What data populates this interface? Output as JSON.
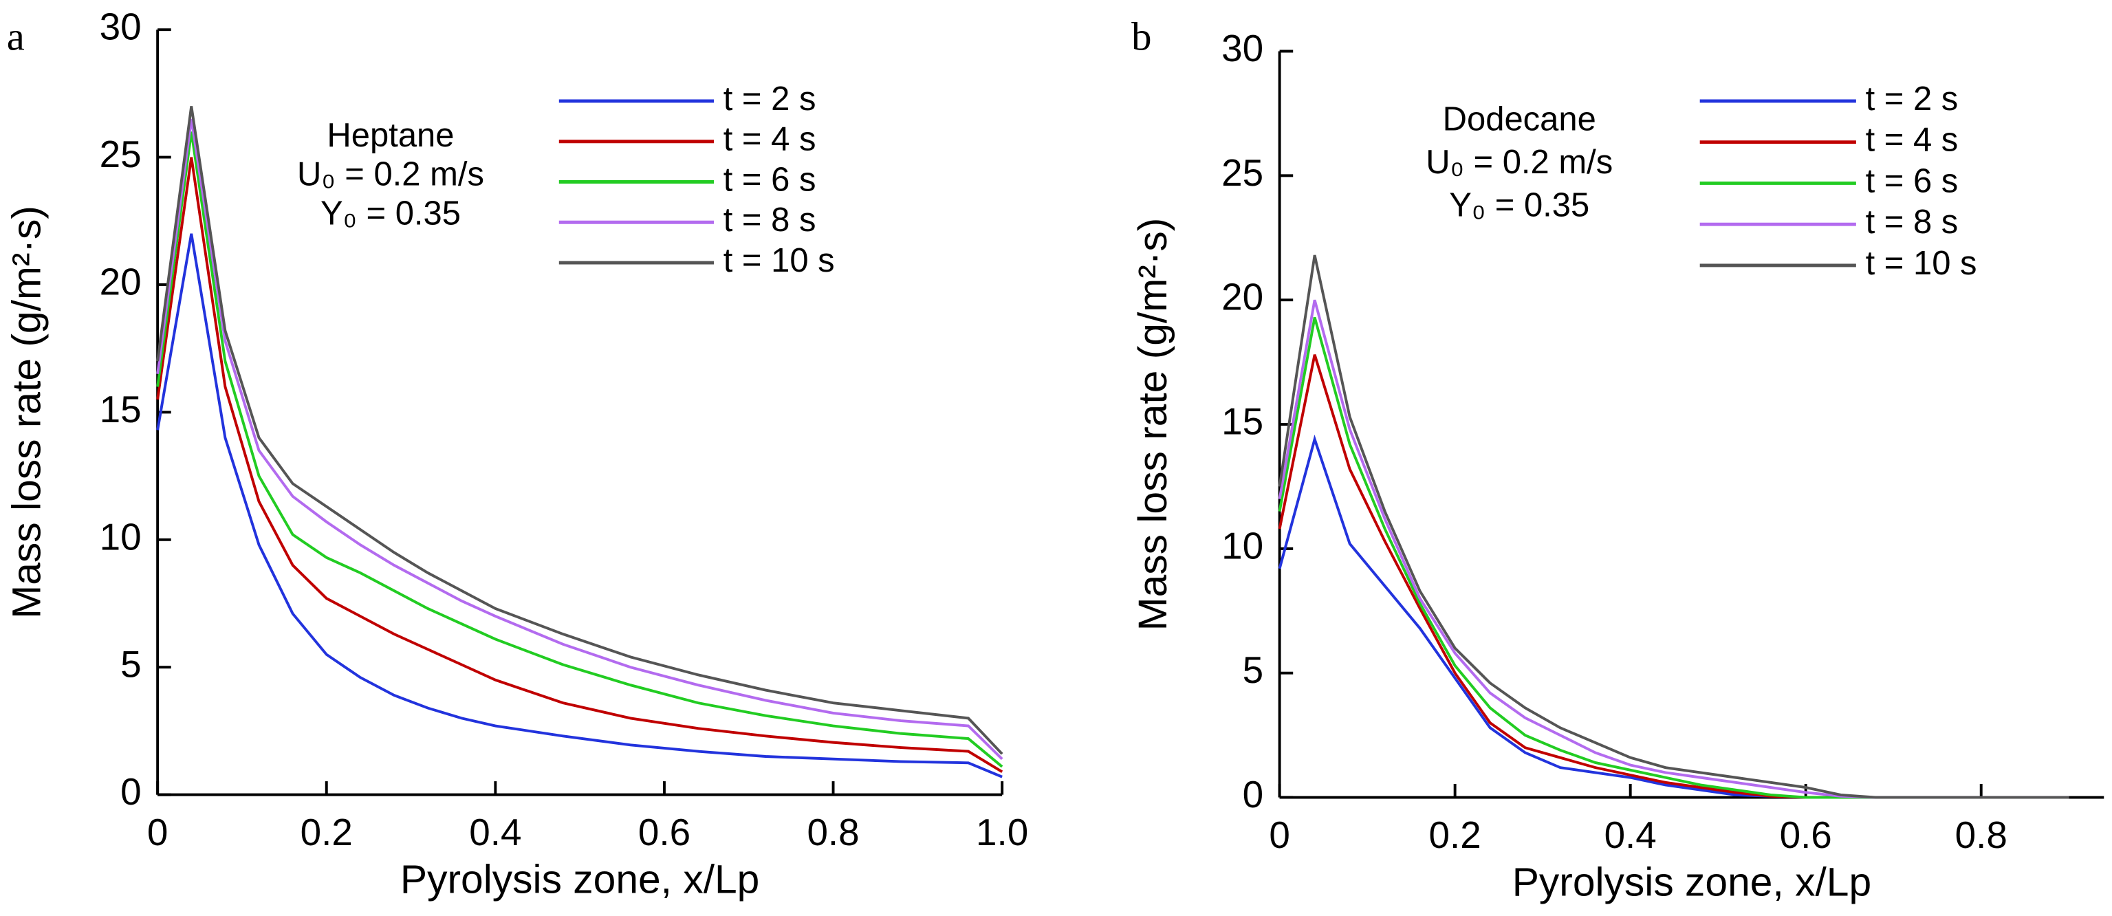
{
  "chart_data": [
    {
      "type": "line",
      "panel_label": "a",
      "xlabel": "Pyrolysis zone, x/Lp",
      "ylabel": "Mass loss rate (g/m²·s)",
      "annotation": [
        "Heptane",
        "U₀ = 0.2 m/s",
        "Y₀ = 0.35"
      ],
      "x": [
        0,
        0.04,
        0.08,
        0.12,
        0.16,
        0.2,
        0.24,
        0.28,
        0.32,
        0.36,
        0.4,
        0.48,
        0.56,
        0.64,
        0.72,
        0.8,
        0.88,
        0.96,
        1.0
      ],
      "series": [
        {
          "name": "t = 2 s",
          "color": "#2233dd",
          "values": [
            14.3,
            22,
            14,
            9.8,
            7.1,
            5.5,
            4.6,
            3.9,
            3.4,
            3.0,
            2.7,
            2.3,
            1.95,
            1.7,
            1.5,
            1.4,
            1.3,
            1.25,
            0.7
          ]
        },
        {
          "name": "t = 4 s",
          "color": "#c00000",
          "values": [
            15.5,
            25,
            16,
            11.5,
            9.0,
            7.7,
            7.0,
            6.3,
            5.7,
            5.1,
            4.5,
            3.6,
            3.0,
            2.6,
            2.3,
            2.05,
            1.85,
            1.7,
            0.9
          ]
        },
        {
          "name": "t = 6 s",
          "color": "#22cc22",
          "values": [
            16,
            26,
            17,
            12.5,
            10.2,
            9.3,
            8.7,
            8.0,
            7.3,
            6.7,
            6.1,
            5.1,
            4.3,
            3.6,
            3.1,
            2.7,
            2.4,
            2.2,
            1.1
          ]
        },
        {
          "name": "t = 8 s",
          "color": "#b36bef",
          "values": [
            16.5,
            26.5,
            17.8,
            13.5,
            11.7,
            10.7,
            9.8,
            9.0,
            8.3,
            7.6,
            7.0,
            5.9,
            5.0,
            4.3,
            3.7,
            3.2,
            2.9,
            2.7,
            1.4
          ]
        },
        {
          "name": "t = 10 s",
          "color": "#555555",
          "values": [
            17,
            27,
            18.2,
            14,
            12.2,
            11.3,
            10.4,
            9.5,
            8.7,
            8.0,
            7.3,
            6.3,
            5.4,
            4.7,
            4.1,
            3.6,
            3.3,
            3.0,
            1.6
          ]
        }
      ],
      "xlim": [
        0,
        1
      ],
      "ylim": [
        0,
        30
      ],
      "xticks": [
        0,
        0.2,
        0.4,
        0.6,
        0.8,
        {
          "value": 1,
          "label": "1.0"
        }
      ],
      "yticks": [
        0,
        5,
        10,
        15,
        20,
        25,
        30
      ]
    },
    {
      "type": "line",
      "panel_label": "b",
      "xlabel": "Pyrolysis zone, x/Lp",
      "ylabel": "Mass loss rate (g/m²·s)",
      "annotation": [
        "Dodecane",
        "U₀ = 0.2 m/s",
        "Y₀ = 0.35"
      ],
      "x": [
        0,
        0.04,
        0.08,
        0.12,
        0.16,
        0.2,
        0.24,
        0.28,
        0.32,
        0.36,
        0.4,
        0.44,
        0.48,
        0.52,
        0.56,
        0.6,
        0.64,
        0.68,
        0.72,
        0.8,
        0.9
      ],
      "series": [
        {
          "name": "t = 2 s",
          "color": "#2233dd",
          "values": [
            9.2,
            14.4,
            10.2,
            8.5,
            6.8,
            4.8,
            2.8,
            1.8,
            1.2,
            1.0,
            0.8,
            0.5,
            0.3,
            0.1,
            0.05,
            0,
            0,
            0,
            0,
            0,
            0
          ]
        },
        {
          "name": "t = 4 s",
          "color": "#c00000",
          "values": [
            10.8,
            17.8,
            13.2,
            10.3,
            7.6,
            5.0,
            3.0,
            2.0,
            1.6,
            1.2,
            0.9,
            0.6,
            0.4,
            0.2,
            0.05,
            0,
            0,
            0,
            0,
            0,
            0
          ]
        },
        {
          "name": "t = 6 s",
          "color": "#22cc22",
          "values": [
            11.5,
            19.3,
            14.2,
            10.8,
            7.8,
            5.3,
            3.6,
            2.5,
            1.9,
            1.4,
            1.1,
            0.8,
            0.5,
            0.3,
            0.1,
            0,
            0,
            0,
            0,
            0,
            0
          ]
        },
        {
          "name": "t = 8 s",
          "color": "#b36bef",
          "values": [
            12,
            20,
            14.8,
            11.2,
            8,
            5.8,
            4.2,
            3.2,
            2.5,
            1.8,
            1.3,
            1.0,
            0.8,
            0.6,
            0.4,
            0.2,
            0.05,
            0,
            0,
            0,
            0
          ]
        },
        {
          "name": "t = 10 s",
          "color": "#555555",
          "values": [
            12.5,
            21.8,
            15.3,
            11.5,
            8.3,
            6.0,
            4.6,
            3.6,
            2.8,
            2.2,
            1.6,
            1.2,
            1.0,
            0.8,
            0.6,
            0.4,
            0.1,
            0,
            0,
            0,
            0
          ]
        }
      ],
      "xlim": [
        0,
        0.94
      ],
      "ylim": [
        0,
        30
      ],
      "xticks": [
        0,
        0.2,
        0.4,
        0.6,
        0.8
      ],
      "yticks": [
        0,
        5,
        10,
        15,
        20,
        25,
        30
      ]
    }
  ]
}
